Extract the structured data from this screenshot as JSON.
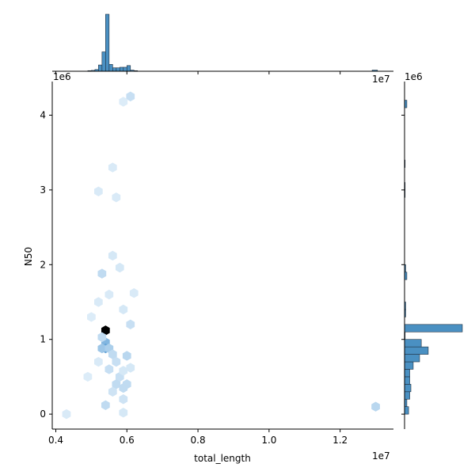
{
  "chart_data": {
    "type": "hexbin-jointplot",
    "xlabel": "total_length",
    "ylabel": "N50",
    "xlim": [
      3900000.0,
      13500000.0
    ],
    "ylim": [
      -200000.0,
      4450000.0
    ],
    "x_scale_label": "1e7",
    "y_scale_label": "1e6",
    "x_ticks": [
      {
        "value": 4000000.0,
        "label": "0.4"
      },
      {
        "value": 6000000.0,
        "label": "0.6"
      },
      {
        "value": 8000000.0,
        "label": "0.8"
      },
      {
        "value": 10000000.0,
        "label": "1.0"
      },
      {
        "value": 12000000.0,
        "label": "1.2"
      }
    ],
    "y_ticks": [
      {
        "value": 0,
        "label": "0"
      },
      {
        "value": 1000000.0,
        "label": "1"
      },
      {
        "value": 2000000.0,
        "label": "2"
      },
      {
        "value": 3000000.0,
        "label": "3"
      },
      {
        "value": 4000000.0,
        "label": "4"
      }
    ],
    "hex_bins": [
      {
        "x": 5400000.0,
        "y": 1120000.0,
        "level": 1.0
      },
      {
        "x": 5400000.0,
        "y": 960000.0,
        "level": 0.3
      },
      {
        "x": 5400000.0,
        "y": 880000.0,
        "level": 0.38
      },
      {
        "x": 5300000.0,
        "y": 880000.0,
        "level": 0.22
      },
      {
        "x": 5500000.0,
        "y": 880000.0,
        "level": 0.18
      },
      {
        "x": 5300000.0,
        "y": 1030000.0,
        "level": 0.12
      },
      {
        "x": 5600000.0,
        "y": 800000.0,
        "level": 0.12
      },
      {
        "x": 5700000.0,
        "y": 700000.0,
        "level": 0.1
      },
      {
        "x": 6000000.0,
        "y": 780000.0,
        "level": 0.14
      },
      {
        "x": 5500000.0,
        "y": 600000.0,
        "level": 0.1
      },
      {
        "x": 5800000.0,
        "y": 500000.0,
        "level": 0.1
      },
      {
        "x": 5700000.0,
        "y": 400000.0,
        "level": 0.12
      },
      {
        "x": 5900000.0,
        "y": 350000.0,
        "level": 0.12
      },
      {
        "x": 6000000.0,
        "y": 400000.0,
        "level": 0.12
      },
      {
        "x": 5600000.0,
        "y": 300000.0,
        "level": 0.08
      },
      {
        "x": 5400000.0,
        "y": 120000.0,
        "level": 0.12
      },
      {
        "x": 5900000.0,
        "y": 200000.0,
        "level": 0.08
      },
      {
        "x": 5300000.0,
        "y": 1880000.0,
        "level": 0.12
      },
      {
        "x": 5800000.0,
        "y": 1960000.0,
        "level": 0.06
      },
      {
        "x": 5600000.0,
        "y": 2120000.0,
        "level": 0.06
      },
      {
        "x": 5200000.0,
        "y": 1500000.0,
        "level": 0.05
      },
      {
        "x": 5500000.0,
        "y": 1600000.0,
        "level": 0.05
      },
      {
        "x": 5900000.0,
        "y": 1400000.0,
        "level": 0.06
      },
      {
        "x": 6100000.0,
        "y": 1200000.0,
        "level": 0.1
      },
      {
        "x": 6200000.0,
        "y": 1620000.0,
        "level": 0.05
      },
      {
        "x": 5900000.0,
        "y": 580000.0,
        "level": 0.06
      },
      {
        "x": 6100000.0,
        "y": 620000.0,
        "level": 0.06
      },
      {
        "x": 5200000.0,
        "y": 2980000.0,
        "level": 0.05
      },
      {
        "x": 5700000.0,
        "y": 2900000.0,
        "level": 0.05
      },
      {
        "x": 5600000.0,
        "y": 3300000.0,
        "level": 0.05
      },
      {
        "x": 6100000.0,
        "y": 4250000.0,
        "level": 0.1
      },
      {
        "x": 5900000.0,
        "y": 4180000.0,
        "level": 0.04
      },
      {
        "x": 4300000.0,
        "y": 0.0,
        "level": 0.05
      },
      {
        "x": 5900000.0,
        "y": 20000.0,
        "level": 0.06
      },
      {
        "x": 13000000.0,
        "y": 100000.0,
        "level": 0.14
      },
      {
        "x": 5200000.0,
        "y": 700000.0,
        "level": 0.05
      },
      {
        "x": 5000000.0,
        "y": 1300000.0,
        "level": 0.04
      },
      {
        "x": 4900000.0,
        "y": 500000.0,
        "level": 0.04
      }
    ],
    "x_marginal": {
      "bins": [
        {
          "x0": 4200000.0,
          "x1": 4300000.0,
          "count": 0.003
        },
        {
          "x0": 4900000.0,
          "x1": 5000000.0,
          "count": 0.01
        },
        {
          "x0": 5000000.0,
          "x1": 5100000.0,
          "count": 0.015
        },
        {
          "x0": 5100000.0,
          "x1": 5200000.0,
          "count": 0.03
        },
        {
          "x0": 5200000.0,
          "x1": 5300000.0,
          "count": 0.11
        },
        {
          "x0": 5300000.0,
          "x1": 5400000.0,
          "count": 0.34
        },
        {
          "x0": 5400000.0,
          "x1": 5500000.0,
          "count": 1.0
        },
        {
          "x0": 5500000.0,
          "x1": 5600000.0,
          "count": 0.12
        },
        {
          "x0": 5600000.0,
          "x1": 5700000.0,
          "count": 0.06
        },
        {
          "x0": 5700000.0,
          "x1": 5800000.0,
          "count": 0.06
        },
        {
          "x0": 5800000.0,
          "x1": 5900000.0,
          "count": 0.07
        },
        {
          "x0": 5900000.0,
          "x1": 6000000.0,
          "count": 0.07
        },
        {
          "x0": 6000000.0,
          "x1": 6100000.0,
          "count": 0.1
        },
        {
          "x0": 6100000.0,
          "x1": 6200000.0,
          "count": 0.02
        },
        {
          "x0": 6200000.0,
          "x1": 6300000.0,
          "count": 0.01
        },
        {
          "x0": 12900000.0,
          "x1": 13050000.0,
          "count": 0.02
        }
      ]
    },
    "y_marginal": {
      "bins": [
        {
          "y0": 0.0,
          "y1": 100000.0,
          "count": 0.07
        },
        {
          "y0": 100000.0,
          "y1": 200000.0,
          "count": 0.04
        },
        {
          "y0": 200000.0,
          "y1": 300000.0,
          "count": 0.09
        },
        {
          "y0": 300000.0,
          "y1": 400000.0,
          "count": 0.11
        },
        {
          "y0": 400000.0,
          "y1": 500000.0,
          "count": 0.09
        },
        {
          "y0": 500000.0,
          "y1": 600000.0,
          "count": 0.09
        },
        {
          "y0": 600000.0,
          "y1": 700000.0,
          "count": 0.15
        },
        {
          "y0": 700000.0,
          "y1": 800000.0,
          "count": 0.26
        },
        {
          "y0": 800000.0,
          "y1": 900000.0,
          "count": 0.41
        },
        {
          "y0": 900000.0,
          "y1": 1000000.0,
          "count": 0.29
        },
        {
          "y0": 1000000.0,
          "y1": 1100000.0,
          "count": 0.01
        },
        {
          "y0": 1100000.0,
          "y1": 1200000.0,
          "count": 1.0
        },
        {
          "y0": 1300000.0,
          "y1": 1400000.0,
          "count": 0.02
        },
        {
          "y0": 1400000.0,
          "y1": 1500000.0,
          "count": 0.02
        },
        {
          "y0": 1800000.0,
          "y1": 1900000.0,
          "count": 0.04
        },
        {
          "y0": 1900000.0,
          "y1": 2000000.0,
          "count": 0.02
        },
        {
          "y0": 2900000.0,
          "y1": 3000000.0,
          "count": 0.01
        },
        {
          "y0": 3000000.0,
          "y1": 3100000.0,
          "count": 0.01
        },
        {
          "y0": 3300000.0,
          "y1": 3400000.0,
          "count": 0.01
        },
        {
          "y0": 4100000.0,
          "y1": 4200000.0,
          "count": 0.04
        }
      ]
    },
    "colors": {
      "hex_light": "#eaf4fc",
      "hex_dark": "#000000",
      "hist_fill": "#4a90c2",
      "hist_edge": "#1f2f3f"
    }
  }
}
